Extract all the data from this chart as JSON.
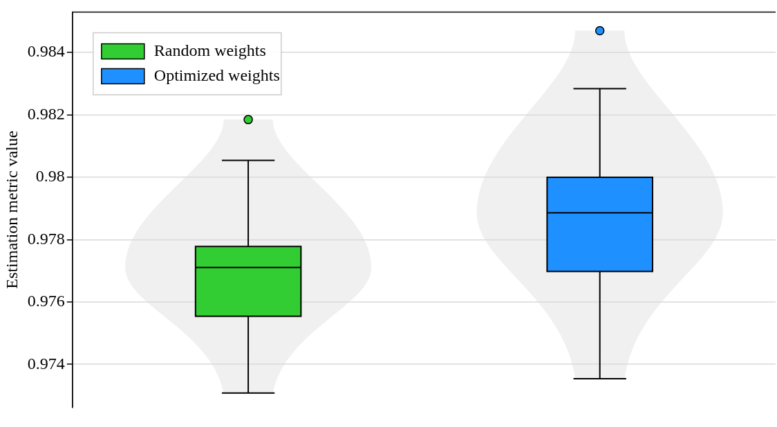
{
  "chart_data": {
    "type": "box",
    "ylabel": "Estimation metric value",
    "categories": [
      null,
      null
    ],
    "series": [
      {
        "name": "Random weights",
        "color": "#32cd32",
        "boxes": [
          {
            "low": 0.97308,
            "q1": 0.97554,
            "median": 0.97711,
            "q3": 0.97778,
            "high": 0.98054,
            "outliers": [
              0.98185
            ]
          },
          null
        ]
      },
      {
        "name": "Optimized weights",
        "color": "#1e90ff",
        "boxes": [
          null,
          {
            "low": 0.97354,
            "q1": 0.97698,
            "median": 0.97886,
            "q3": 0.98,
            "high": 0.98284,
            "outliers": [
              0.9847
            ]
          }
        ]
      }
    ],
    "ylim": [
      0.97262,
      0.9853
    ],
    "yticks": [
      0.974,
      0.976,
      0.978,
      0.98,
      0.982,
      0.984
    ],
    "grid": "y",
    "legend": "top left"
  }
}
